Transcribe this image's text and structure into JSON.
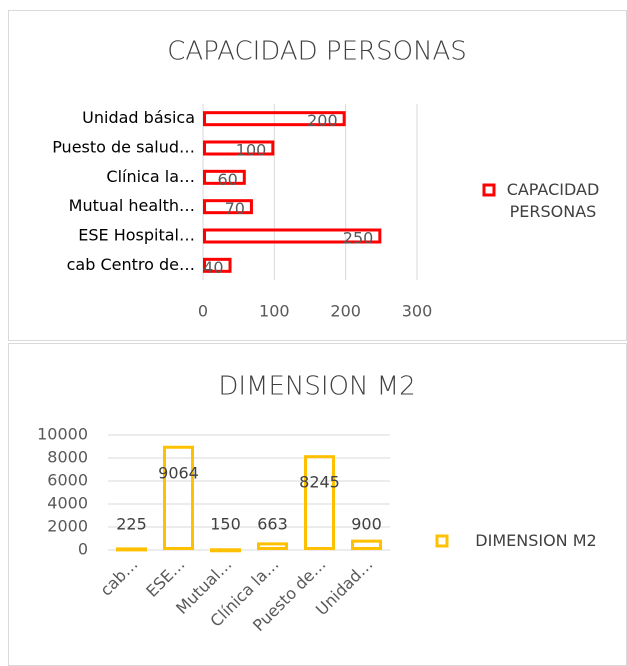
{
  "chart_data": [
    {
      "type": "bar",
      "orientation": "horizontal",
      "title": "CAPACIDAD PERSONAS",
      "categories": [
        "Unidad básica",
        "Puesto de salud…",
        "Clínica la…",
        "Mutual health…",
        "ESE Hospital…",
        "cab Centro de…"
      ],
      "series": [
        {
          "name": "CAPACIDAD PERSONAS",
          "color": "#ff0000",
          "values": [
            200,
            100,
            60,
            70,
            250,
            40
          ]
        }
      ],
      "xlim": [
        0,
        300
      ],
      "xticks": [
        0,
        100,
        200,
        300
      ],
      "grid": true,
      "legend": "right"
    },
    {
      "type": "bar",
      "orientation": "vertical",
      "title": "DIMENSION M2",
      "categories": [
        "cab…",
        "ESE…",
        "Mutual…",
        "Clínica la…",
        "Puesto de…",
        "Unidad…"
      ],
      "series": [
        {
          "name": "DIMENSION M2",
          "color": "#ffc000",
          "values": [
            225,
            9064,
            150,
            663,
            8245,
            900
          ]
        }
      ],
      "ylim": [
        0,
        10000
      ],
      "yticks": [
        0,
        2000,
        4000,
        6000,
        8000,
        10000
      ],
      "grid": true,
      "legend": "right"
    }
  ]
}
